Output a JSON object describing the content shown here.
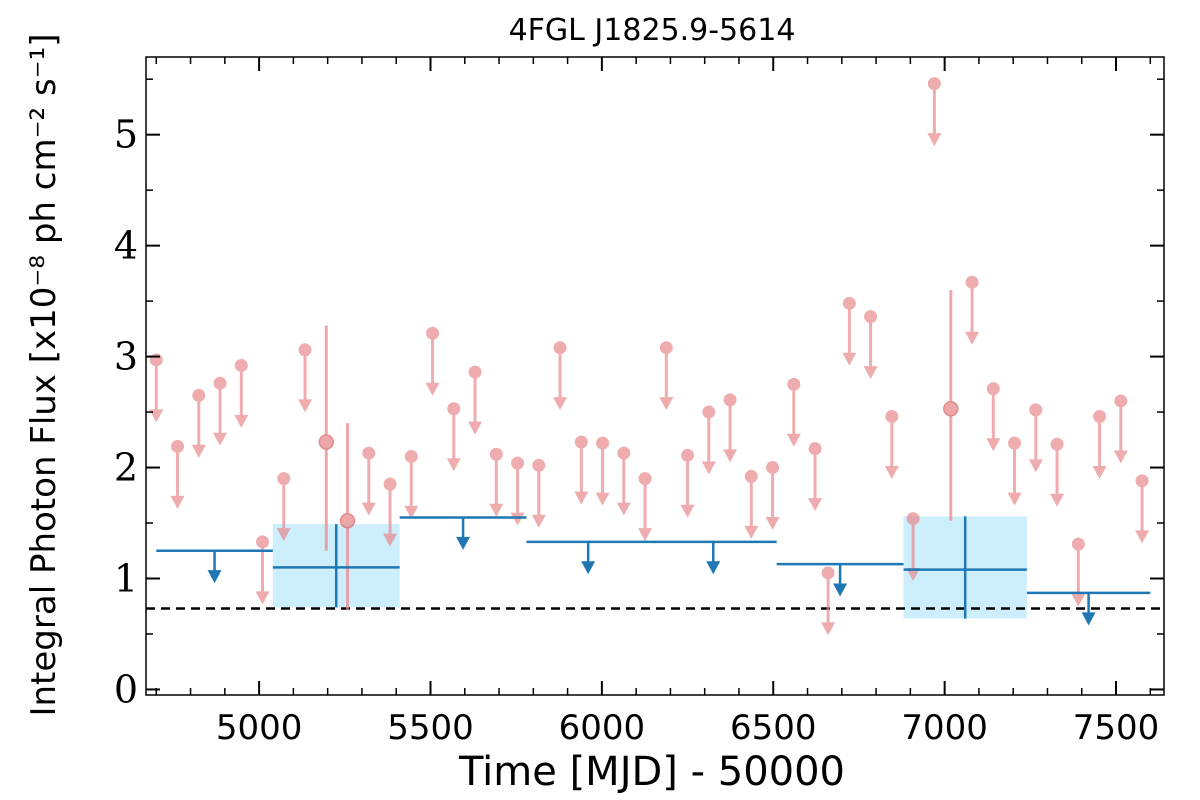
{
  "chart_data": {
    "type": "scatter",
    "title": "4FGL J1825.9-5614",
    "xlabel": "Time [MJD] - 50000",
    "ylabel": "Integral Photon Flux [x10⁻⁸ ph cm⁻² s⁻¹]",
    "xlim": [
      4670,
      7640
    ],
    "ylim": [
      -0.05,
      5.7
    ],
    "x_ticks": [
      5000,
      5500,
      6000,
      6500,
      7000,
      7500
    ],
    "x_tick_labels": [
      "5000",
      "5500",
      "6000",
      "6500",
      "7000",
      "7500"
    ],
    "y_ticks": [
      0,
      1,
      2,
      3,
      4,
      5
    ],
    "y_tick_labels": [
      "0",
      "1",
      "2",
      "3",
      "4",
      "5"
    ],
    "reference_line": {
      "y": 0.73,
      "style": "dashed",
      "color": "#000000"
    },
    "colors": {
      "short_bin": "#e88a8c",
      "long_bin": "#1f77b4",
      "box_fill": "#cdeefc"
    },
    "series": [
      {
        "type": "upper_limits",
        "color": "#e88a8c",
        "points": [
          [
            4700,
            2.97
          ],
          [
            4762,
            2.19
          ],
          [
            4824,
            2.65
          ],
          [
            4886,
            2.76
          ],
          [
            4948,
            2.92
          ],
          [
            5010,
            1.33
          ],
          [
            5072,
            1.9
          ],
          [
            5134,
            3.06
          ],
          [
            5320,
            2.13
          ],
          [
            5382,
            1.85
          ],
          [
            5444,
            2.1
          ],
          [
            5506,
            3.21
          ],
          [
            5568,
            2.53
          ],
          [
            5630,
            2.86
          ],
          [
            5692,
            2.12
          ],
          [
            5754,
            2.04
          ],
          [
            5816,
            2.02
          ],
          [
            5878,
            3.08
          ],
          [
            5940,
            2.23
          ],
          [
            6002,
            2.22
          ],
          [
            6064,
            2.13
          ],
          [
            6126,
            1.9
          ],
          [
            6188,
            3.08
          ],
          [
            6250,
            2.11
          ],
          [
            6312,
            2.5
          ],
          [
            6374,
            2.61
          ],
          [
            6436,
            1.92
          ],
          [
            6498,
            2.0
          ],
          [
            6560,
            2.75
          ],
          [
            6622,
            2.17
          ],
          [
            6660,
            1.05
          ],
          [
            6722,
            3.48
          ],
          [
            6784,
            3.36
          ],
          [
            6846,
            2.46
          ],
          [
            6908,
            1.54
          ],
          [
            6970,
            5.46
          ],
          [
            7080,
            3.67
          ],
          [
            7142,
            2.71
          ],
          [
            7204,
            2.22
          ],
          [
            7266,
            2.52
          ],
          [
            7328,
            2.21
          ],
          [
            7390,
            1.31
          ],
          [
            7452,
            2.46
          ],
          [
            7514,
            2.6
          ],
          [
            7576,
            1.88
          ]
        ]
      },
      {
        "type": "detections",
        "color": "#e88a8c",
        "points": [
          [
            5196,
            2.23,
            1.25,
            3.28
          ],
          [
            5258,
            1.52,
            0.72,
            2.4
          ],
          [
            7018,
            2.53,
            1.52,
            3.6
          ]
        ]
      },
      {
        "type": "long_bin_upper_limits",
        "color": "#1f77b4",
        "bins": [
          [
            4700,
            5040,
            1.25
          ],
          [
            5410,
            5780,
            1.55
          ],
          [
            5780,
            6140,
            1.33
          ],
          [
            6140,
            6510,
            1.33
          ],
          [
            6510,
            6880,
            1.13
          ],
          [
            7240,
            7600,
            0.87
          ]
        ]
      },
      {
        "type": "long_bin_detections",
        "color": "#1f77b4",
        "bins": [
          [
            5040,
            5410,
            1.1,
            0.74,
            1.49
          ],
          [
            6880,
            7240,
            1.08,
            0.64,
            1.56
          ]
        ]
      }
    ]
  }
}
